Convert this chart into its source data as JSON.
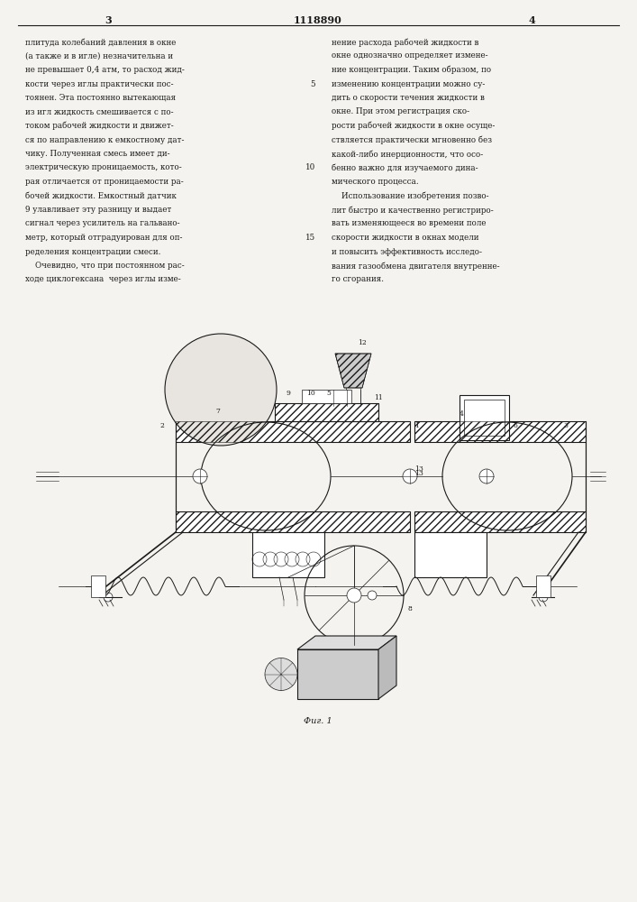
{
  "page_width": 7.07,
  "page_height": 10.0,
  "bg_color": "#f5f3ef",
  "text_color": "#1a1a1a",
  "patent_number": "1118890",
  "page_left": "3",
  "page_right": "4",
  "col1_text": [
    "плитуда колебаний давления в окне",
    "(а также и в игле) незначительна и",
    "не превышает 0,4 атм, то расход жид-",
    "кости через иглы практически пос-",
    "тоянен. Эта постоянно вытекающая",
    "из игл жидкость смешивается с по-",
    "током рабочей жидкости и движет-",
    "ся по направлению к емкостному дат-",
    "чику. Полученная смесь имеет ди-",
    "электрическую проницаемость, кото-",
    "рая отличается от проницаемости ра-",
    "бочей жидкости. Емкостный датчик",
    "9 улавливает эту разницу и выдает",
    "сигнал через усилитель на гальвано-",
    "метр, который отградуирован для оп-",
    "ределения концентрации смеси.",
    "    Очевидно, что при постоянном рас-",
    "ходе циклогексана  через иглы изме-"
  ],
  "col2_text": [
    "нение расхода рабочей жидкости в",
    "окне однозначно определяет измене-",
    "ние концентрации. Таким образом, по",
    "изменению концентрации можно су-",
    "дить о скорости течения жидкости в",
    "окне. При этом регистрация ско-",
    "рости рабочей жидкости в окне осуще-",
    "ствляется практически мгновенно без",
    "какой-либо инерционности, что осо-",
    "бенно важно для изучаемого дина-",
    "мического процесса.",
    "    Использование изобретения позво-",
    "лит быстро и качественно регистриро-",
    "вать изменяющееся во времени поле",
    "скорости жидкости в окнах модели",
    "и повысить эффективность исследо-",
    "вания газообмена двигателя внутренне-",
    "го сгорания."
  ],
  "fig_caption": "Фиг. 1"
}
